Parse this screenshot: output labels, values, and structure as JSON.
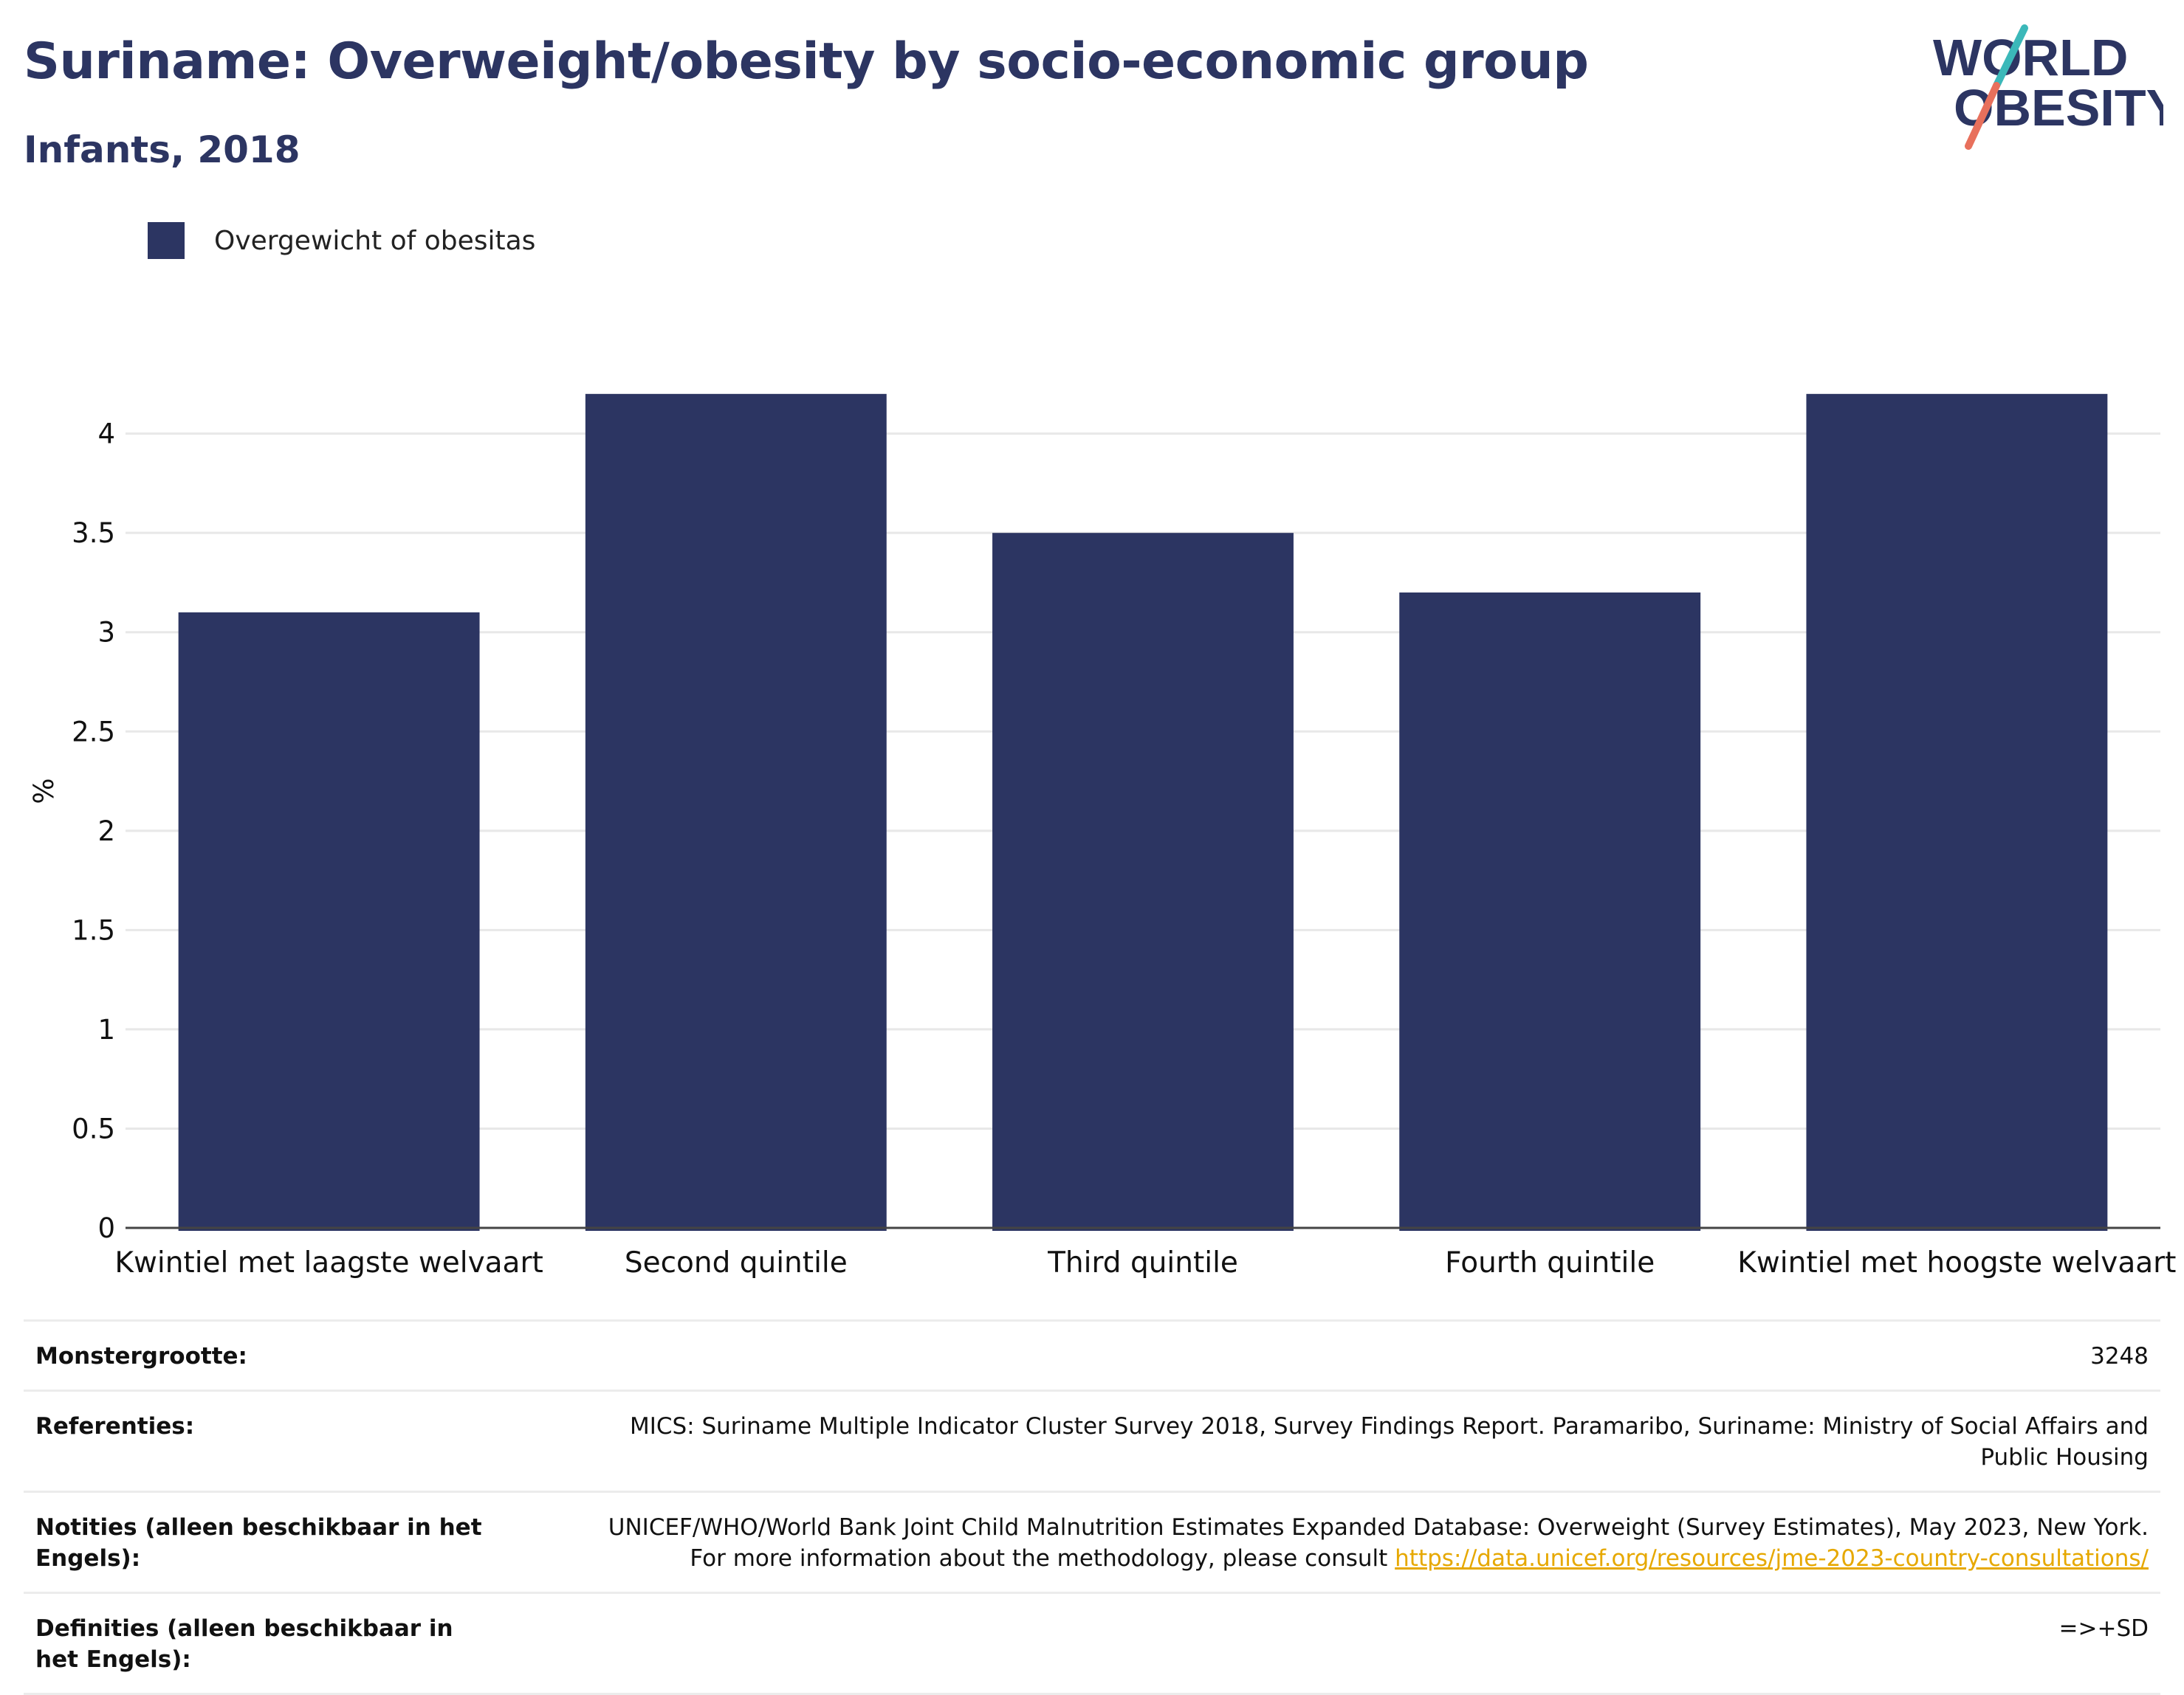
{
  "header": {
    "title": "Suriname: Overweight/obesity by socio-economic group",
    "subtitle": "Infants, 2018"
  },
  "logo": {
    "line1": "WORLD",
    "line2": "OBESITY",
    "accent_teal": "#3bb8b9",
    "accent_coral": "#e8705c",
    "text_color": "#2c3562"
  },
  "legend": {
    "label": "Overgewicht of obesitas",
    "color": "#2c3562"
  },
  "chart_data": {
    "type": "bar",
    "categories": [
      "Kwintiel met laagste welvaart",
      "Second quintile",
      "Third quintile",
      "Fourth quintile",
      "Kwintiel met hoogste welvaart"
    ],
    "series": [
      {
        "name": "Overgewicht of obesitas",
        "values": [
          3.1,
          4.2,
          3.5,
          3.2,
          4.2
        ],
        "color": "#2c3562"
      }
    ],
    "ylabel": "%",
    "ylim": [
      0,
      4.4
    ],
    "yticks": [
      0,
      0.5,
      1,
      1.5,
      2,
      2.5,
      3,
      3.5,
      4
    ],
    "ytick_labels": [
      "0",
      "0.5",
      "1",
      "1.5",
      "2",
      "2.5",
      "3",
      "3.5",
      "4"
    ],
    "grid": true
  },
  "info": {
    "rows": [
      {
        "key": "Monstergrootte:",
        "value": "3248"
      },
      {
        "key": "Referenties:",
        "value": "MICS: Suriname Multiple Indicator Cluster Survey 2018, Survey Findings Report. Paramaribo, Suriname: Ministry of Social Affairs and Public Housing"
      },
      {
        "key": "Notities (alleen beschikbaar in het Engels):",
        "value": "UNICEF/WHO/World Bank Joint Child Malnutrition Estimates Expanded Database: Overweight (Survey Estimates), May 2023, New York. For more information about the methodology, please consult ",
        "link": "https://data.unicef.org/resources/jme-2023-country-consultations/"
      },
      {
        "key": "Definities (alleen beschikbaar in het Engels):",
        "value": "=>+SD"
      }
    ]
  }
}
